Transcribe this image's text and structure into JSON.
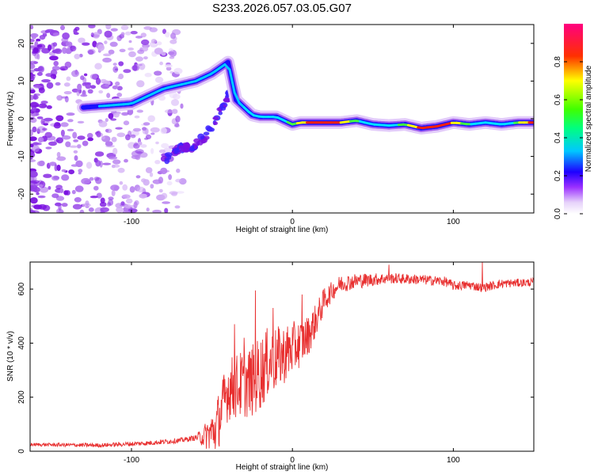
{
  "title": "S233.2026.057.03.05.G07",
  "chart_data": [
    {
      "type": "heatmap",
      "title": "S233.2026.057.03.05.G07",
      "xlabel": "Height of straight line (km)",
      "ylabel": "Frequency (Hz)",
      "xlim": [
        -163,
        150
      ],
      "ylim": [
        -25,
        25
      ],
      "xticks": [
        -100,
        0,
        100
      ],
      "yticks": [
        -20,
        -10,
        0,
        10,
        20
      ],
      "xtick_labels": [
        "-100",
        "0",
        "100"
      ],
      "ytick_labels": [
        "-20",
        "-10",
        "0",
        "10",
        "20"
      ],
      "ridge": {
        "name": "dominant frequency track",
        "x": [
          -130,
          -115,
          -100,
          -90,
          -80,
          -70,
          -60,
          -50,
          -40,
          -35,
          -30,
          -25,
          -20,
          -10,
          0,
          5,
          10,
          20,
          30,
          40,
          50,
          60,
          70,
          80,
          90,
          100,
          110,
          120,
          130,
          140,
          150
        ],
        "y": [
          3,
          3.5,
          4,
          6,
          8,
          9,
          10,
          12,
          15,
          5,
          3,
          1,
          0.5,
          0.5,
          -1.5,
          -1,
          -1,
          -1,
          -1,
          -0.5,
          -1.5,
          -1.8,
          -1.5,
          -2.5,
          -2,
          -1,
          -1.5,
          -1,
          -1.5,
          -1,
          -1
        ]
      },
      "colorbar": {
        "label": "Normalized spectral amplitude",
        "range": [
          0,
          1
        ],
        "ticks": [
          0.0,
          0.2,
          0.4,
          0.6,
          0.8
        ],
        "tick_labels": [
          "0.0",
          "0.2",
          "0.4",
          "0.6",
          "0.8"
        ],
        "colors": [
          "#ffffff",
          "#d6b3f5",
          "#8a00ff",
          "#0000ff",
          "#00ffff",
          "#00ff00",
          "#ffff00",
          "#ff0000",
          "#ff00aa"
        ]
      }
    },
    {
      "type": "line",
      "xlabel": "Height of straight line (km)",
      "ylabel": "SNR (10 * v/v)",
      "xlim": [
        -163,
        150
      ],
      "ylim": [
        0,
        700
      ],
      "xticks": [
        -100,
        0,
        100
      ],
      "yticks": [
        0,
        200,
        400,
        600
      ],
      "xtick_labels": [
        "-100",
        "0",
        "100"
      ],
      "ytick_labels": [
        "0",
        "200",
        "400",
        "600"
      ],
      "color": "#e83030",
      "trend": {
        "x": [
          -163,
          -120,
          -90,
          -70,
          -55,
          -48,
          -44,
          -40,
          -35,
          -30,
          -25,
          -20,
          -15,
          -10,
          -5,
          0,
          5,
          10,
          15,
          20,
          25,
          30,
          40,
          50,
          60,
          80,
          95,
          100,
          110,
          118,
          130,
          150
        ],
        "y": [
          25,
          22,
          30,
          40,
          55,
          80,
          150,
          230,
          240,
          250,
          260,
          290,
          330,
          340,
          360,
          380,
          400,
          430,
          490,
          560,
          595,
          620,
          630,
          635,
          640,
          635,
          628,
          612,
          615,
          605,
          620,
          625
        ]
      },
      "noise": {
        "x": [
          -163,
          -60,
          -45,
          -20,
          0,
          25,
          60,
          150
        ],
        "amplitude": [
          6,
          10,
          110,
          140,
          100,
          35,
          20,
          15
        ]
      },
      "spikes": [
        {
          "x": -36,
          "y": 470
        },
        {
          "x": -30,
          "y": 420
        },
        {
          "x": -23,
          "y": 595
        },
        {
          "x": -12,
          "y": 530
        },
        {
          "x": 6,
          "y": 580
        },
        {
          "x": 60,
          "y": 690
        },
        {
          "x": 118,
          "y": 700
        }
      ]
    }
  ]
}
